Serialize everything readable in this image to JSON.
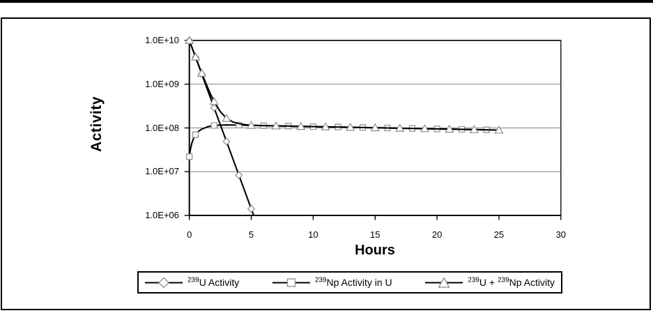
{
  "figure": {
    "background": "#ffffff",
    "top_rule_color": "#000000"
  },
  "chart_data": {
    "type": "line",
    "title": "",
    "xlabel": "Hours",
    "ylabel": "Activity",
    "x_ticks": [
      0,
      5,
      10,
      15,
      20,
      25,
      30
    ],
    "x_range": [
      0,
      30
    ],
    "y_scale": "log",
    "y_log_range": [
      6,
      10
    ],
    "y_ticks": [
      {
        "label": "1.0E+10",
        "log10": 10
      },
      {
        "label": "1.0E+09",
        "log10": 9
      },
      {
        "label": "1.0E+08",
        "log10": 8
      },
      {
        "label": "1.0E+07",
        "log10": 7
      },
      {
        "label": "1.0E+06",
        "log10": 6
      }
    ],
    "grid": true,
    "legend_position": "bottom",
    "colors": {
      "line": "#000000",
      "marker_fill": "#ffffff",
      "marker_stroke": "#8c8c8c",
      "gridline": "#848484",
      "axis": "#000000",
      "plot_border": "#2b2b2b"
    },
    "series": [
      {
        "name": "239U Activity",
        "marker": "diamond",
        "points": [
          [
            0,
            10000000000.0
          ],
          [
            0.5,
            4120000000.0
          ],
          [
            1,
            1700000000.0
          ],
          [
            2,
            289000000.0
          ],
          [
            3,
            49000000.0
          ],
          [
            4,
            8300000.0
          ],
          [
            5,
            1420000.0
          ]
        ],
        "curve": [
          [
            0,
            10000000000.0
          ],
          [
            0.5,
            4120000000.0
          ],
          [
            1,
            1700000000.0
          ],
          [
            2,
            289000000.0
          ],
          [
            3,
            49000000.0
          ],
          [
            4,
            8300000.0
          ],
          [
            5,
            1420000.0
          ],
          [
            6,
            240000.0
          ]
        ]
      },
      {
        "name": "239Np Activity in U",
        "marker": "square",
        "points": [
          [
            0,
            22000000.0
          ],
          [
            0.5,
            70000000.0
          ],
          [
            2,
            114000000.0
          ],
          [
            4,
            116000000.0
          ],
          [
            6,
            112800000.0
          ],
          [
            8,
            110000000.0
          ],
          [
            10,
            107400000.0
          ],
          [
            12,
            104800000.0
          ],
          [
            14,
            102300000.0
          ],
          [
            16,
            99800000.0
          ],
          [
            18,
            97400000.0
          ],
          [
            20,
            95000000.0
          ],
          [
            22,
            92700000.0
          ],
          [
            24,
            90500000.0
          ]
        ],
        "curve": [
          [
            0,
            22000000.0
          ],
          [
            0.1,
            34000000.0
          ],
          [
            0.2,
            45000000.0
          ],
          [
            0.3,
            54000000.0
          ],
          [
            0.5,
            70000000.0
          ],
          [
            0.75,
            84000000.0
          ],
          [
            1,
            94000000.0
          ],
          [
            1.5,
            107000000.0
          ],
          [
            2,
            114000000.0
          ],
          [
            3,
            117000000.0
          ],
          [
            4,
            116000000.0
          ],
          [
            6,
            112800000.0
          ],
          [
            8,
            110000000.0
          ],
          [
            10,
            107400000.0
          ],
          [
            12,
            104800000.0
          ],
          [
            14,
            102300000.0
          ],
          [
            16,
            99800000.0
          ],
          [
            18,
            97400000.0
          ],
          [
            20,
            95000000.0
          ],
          [
            22,
            92700000.0
          ],
          [
            24,
            90500000.0
          ]
        ]
      },
      {
        "name": "239U + 239Np Activity",
        "marker": "triangle",
        "points": [
          [
            0,
            10000000000.0
          ],
          [
            0.5,
            4190000000.0
          ],
          [
            1,
            1790000000.0
          ],
          [
            2,
            403000000.0
          ],
          [
            3,
            166000000.0
          ],
          [
            5,
            115000000.0
          ],
          [
            7,
            111400000.0
          ],
          [
            9,
            108700000.0
          ],
          [
            11,
            106100000.0
          ],
          [
            13,
            103500000.0
          ],
          [
            15,
            101000000.0
          ],
          [
            17,
            98600000.0
          ],
          [
            19,
            96200000.0
          ],
          [
            21,
            93900000.0
          ],
          [
            23,
            91600000.0
          ],
          [
            25,
            89400000.0
          ]
        ],
        "curve": [
          [
            0,
            10000000000.0
          ],
          [
            0.25,
            6480000000.0
          ],
          [
            0.5,
            4190000000.0
          ],
          [
            0.75,
            2740000000.0
          ],
          [
            1,
            1790000000.0
          ],
          [
            1.25,
            1200000000.0
          ],
          [
            1.5,
            810000000.0
          ],
          [
            1.75,
            560000000.0
          ],
          [
            2,
            403000000.0
          ],
          [
            2.5,
            236000000.0
          ],
          [
            3,
            166000000.0
          ],
          [
            3.5,
            137000000.0
          ],
          [
            4,
            125000000.0
          ],
          [
            4.5,
            119000000.0
          ],
          [
            5,
            115000000.0
          ],
          [
            6,
            113000000.0
          ],
          [
            7,
            111400000.0
          ],
          [
            9,
            108700000.0
          ],
          [
            11,
            106100000.0
          ],
          [
            13,
            103500000.0
          ],
          [
            15,
            101000000.0
          ],
          [
            17,
            98600000.0
          ],
          [
            19,
            96200000.0
          ],
          [
            21,
            93900000.0
          ],
          [
            23,
            91600000.0
          ],
          [
            25,
            89400000.0
          ]
        ]
      }
    ]
  },
  "legend": {
    "items": [
      {
        "marker": "diamond",
        "parts": [
          {
            "sup": "239"
          },
          {
            "text": "U Activity"
          }
        ]
      },
      {
        "marker": "square",
        "parts": [
          {
            "sup": "239"
          },
          {
            "text": "Np Activity in U"
          }
        ]
      },
      {
        "marker": "triangle",
        "parts": [
          {
            "sup": "239"
          },
          {
            "text": "U + "
          },
          {
            "sup": "239"
          },
          {
            "text": "Np Activity"
          }
        ]
      }
    ]
  }
}
